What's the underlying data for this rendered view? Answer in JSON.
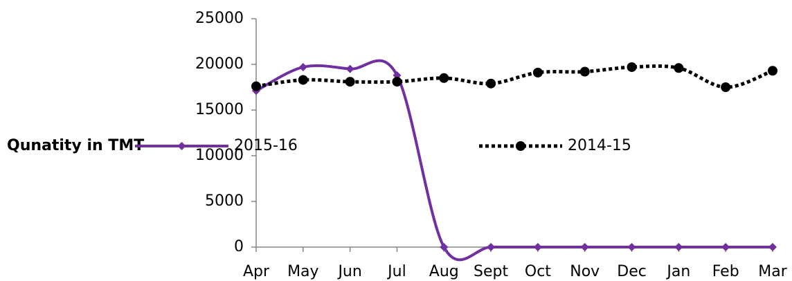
{
  "chart_data": {
    "type": "line",
    "y_label": "Qunatity in TMT",
    "categories": [
      "Apr",
      "May",
      "Jun",
      "Jul",
      "Aug",
      "Sept",
      "Oct",
      "Nov",
      "Dec",
      "Jan",
      "Feb",
      "Mar"
    ],
    "series": [
      {
        "name": "2015-16",
        "color": "#7030a0",
        "marker": "diamond",
        "dash": "solid",
        "values": [
          17100,
          19700,
          19500,
          18800,
          0,
          0,
          0,
          0,
          0,
          0,
          0,
          0
        ]
      },
      {
        "name": "2014-15",
        "color": "#000000",
        "marker": "circle",
        "dash": "dotted",
        "values": [
          17600,
          18300,
          18100,
          18100,
          18500,
          17900,
          19100,
          19200,
          19700,
          19600,
          17500,
          19300
        ]
      }
    ],
    "ylim": [
      0,
      25000
    ],
    "yticks": [
      0,
      5000,
      10000,
      15000,
      20000,
      25000
    ],
    "smooth": true
  }
}
